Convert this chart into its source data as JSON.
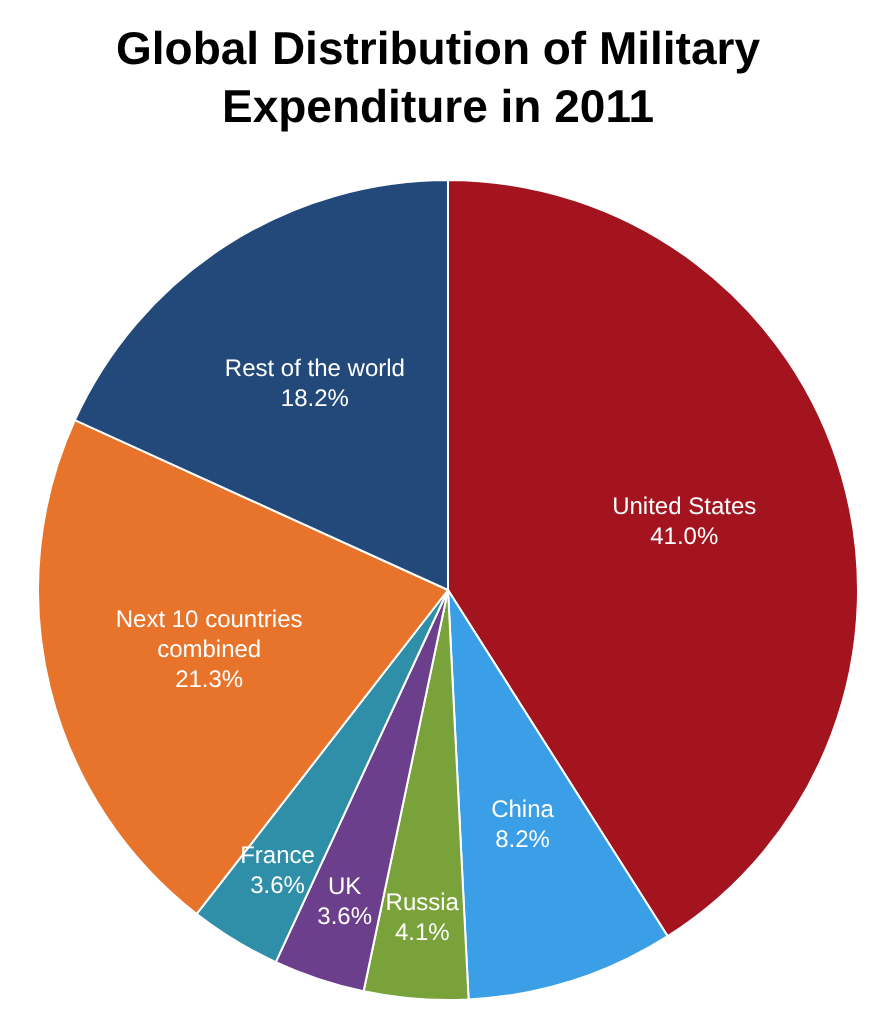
{
  "chart_data": {
    "type": "pie",
    "title": "Global Distribution of Military Expenditure in 2011",
    "categories": [
      "United States",
      "China",
      "Russia",
      "UK",
      "France",
      "Next 10 countries combined",
      "Rest of the world"
    ],
    "values": [
      41.0,
      8.2,
      4.1,
      3.6,
      3.6,
      21.3,
      18.2
    ],
    "value_labels": [
      "41.0%",
      "8.2%",
      "4.1%",
      "3.6%",
      "3.6%",
      "21.3%",
      "18.2%"
    ],
    "colors": [
      "#a3141f",
      "#3a9fe6",
      "#79a23a",
      "#6b3f8c",
      "#2f8ea8",
      "#e8742b",
      "#23497b"
    ]
  }
}
